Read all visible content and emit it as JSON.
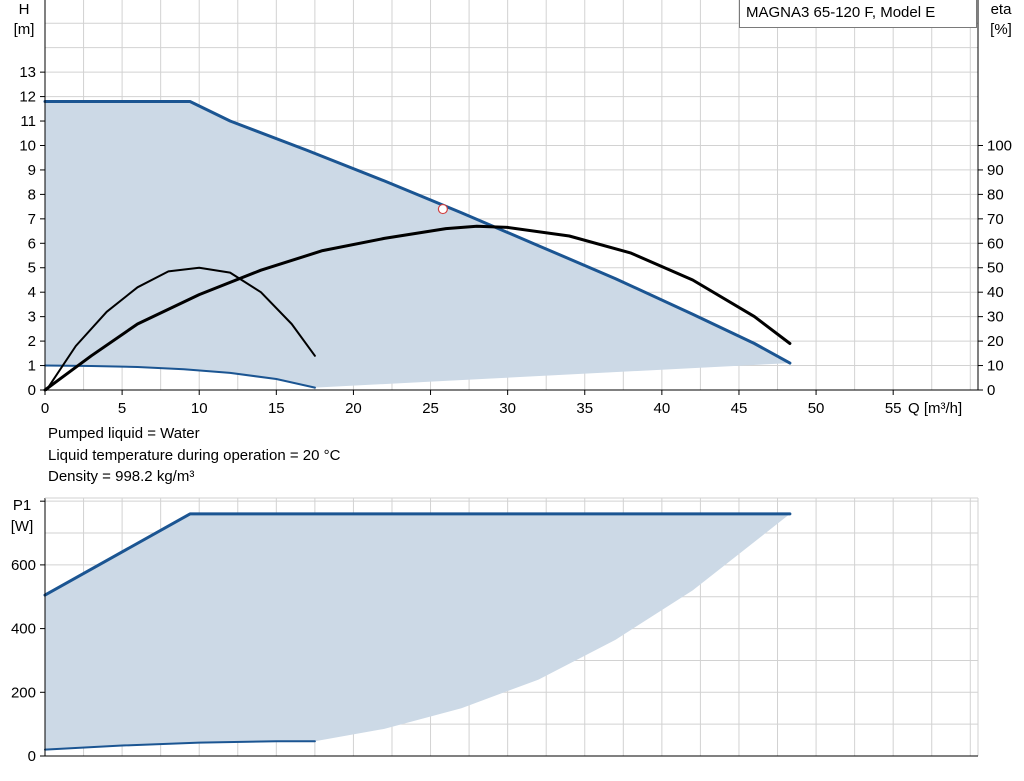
{
  "product": {
    "model_label": "MAGNA3 65-120 F, Model E"
  },
  "conditions": {
    "lines": [
      "Pumped liquid = Water",
      "Liquid temperature during operation = 20 °C",
      "Density = 998.2 kg/m³"
    ]
  },
  "colors": {
    "curve_blue": "#1b5592",
    "fill_area": "#ccd9e6",
    "grid": "#d2d2d2",
    "axis": "#000000",
    "efficiency": "#000000",
    "duty_point_stroke": "#d24040"
  },
  "chart_data": [
    {
      "type": "line",
      "name": "head-curve",
      "title": "",
      "xlabel": "Q [m³/h]",
      "ylabel_left_line1": "H",
      "ylabel_left_line2": "[m]",
      "ylabel_right_line1": "eta",
      "ylabel_right_line2": "[%]",
      "xlim": [
        0,
        60.5
      ],
      "ylim": [
        0,
        15.95
      ],
      "y2lim": [
        0,
        159.5
      ],
      "x_ticks": [
        0,
        5,
        10,
        15,
        20,
        25,
        30,
        35,
        40,
        45,
        50,
        55
      ],
      "y_ticks": [
        0,
        1,
        2,
        3,
        4,
        5,
        6,
        7,
        8,
        9,
        10,
        11,
        12,
        13
      ],
      "y2_ticks": [
        0,
        10,
        20,
        30,
        40,
        50,
        60,
        70,
        80,
        90,
        100
      ],
      "grid": true,
      "series": [
        {
          "role": "head-max",
          "axis": "left",
          "x": [
            0,
            9.4,
            12,
            17,
            22,
            27,
            32,
            37,
            42,
            46,
            48.3
          ],
          "y": [
            11.8,
            11.8,
            11.0,
            9.8,
            8.55,
            7.25,
            5.9,
            4.55,
            3.1,
            1.9,
            1.1
          ]
        },
        {
          "role": "head-min",
          "axis": "left",
          "x": [
            0,
            3,
            6,
            9,
            12,
            15,
            17.5
          ],
          "y": [
            1.0,
            0.98,
            0.94,
            0.85,
            0.7,
            0.45,
            0.1
          ]
        },
        {
          "role": "efficiency-max",
          "axis": "right",
          "x": [
            0,
            3,
            6,
            10,
            14,
            18,
            22,
            26,
            28,
            30,
            34,
            38,
            42,
            46,
            48.3
          ],
          "y": [
            0,
            14,
            27,
            39,
            49,
            57,
            62,
            66,
            67,
            66.5,
            63,
            56,
            45,
            30,
            19
          ]
        },
        {
          "role": "efficiency-min",
          "axis": "right",
          "x": [
            0.1,
            2,
            4,
            6,
            8,
            10,
            12,
            14,
            16,
            17.5
          ],
          "y": [
            0,
            18,
            32,
            42,
            48.5,
            50,
            48,
            40,
            27,
            14
          ]
        },
        {
          "role": "operating-area",
          "axis": "left",
          "x": [
            0,
            9.4,
            12,
            17,
            22,
            27,
            32,
            37,
            42,
            46,
            48.3,
            17.5,
            15,
            12,
            9,
            6,
            3,
            0
          ],
          "y": [
            11.8,
            11.8,
            11.0,
            9.8,
            8.55,
            7.25,
            5.9,
            4.55,
            3.1,
            1.9,
            1.1,
            0.1,
            0.45,
            0.7,
            0.85,
            0.94,
            0.98,
            1.0
          ]
        }
      ],
      "duty_point": {
        "x": 25.8,
        "y": 7.4
      }
    },
    {
      "type": "line",
      "name": "power-curve",
      "title": "",
      "ylabel_line1": "P1",
      "ylabel_line2": "[W]",
      "xlim": [
        0,
        60.5
      ],
      "ylim": [
        0,
        810
      ],
      "y_ticks": [
        0,
        200,
        400,
        600
      ],
      "grid": true,
      "series": [
        {
          "role": "power-max",
          "x": [
            0,
            9.4,
            48.3
          ],
          "y": [
            505,
            760,
            760
          ]
        },
        {
          "role": "power-min",
          "x": [
            0,
            5,
            10,
            15,
            17.5
          ],
          "y": [
            20,
            33,
            42,
            46,
            46
          ]
        },
        {
          "role": "power-area",
          "x": [
            0,
            9.4,
            48.3,
            42,
            37,
            32,
            27,
            22,
            17.5,
            10,
            5,
            0
          ],
          "y": [
            505,
            760,
            760,
            520,
            365,
            240,
            150,
            85,
            46,
            42,
            33,
            20
          ]
        }
      ]
    }
  ]
}
